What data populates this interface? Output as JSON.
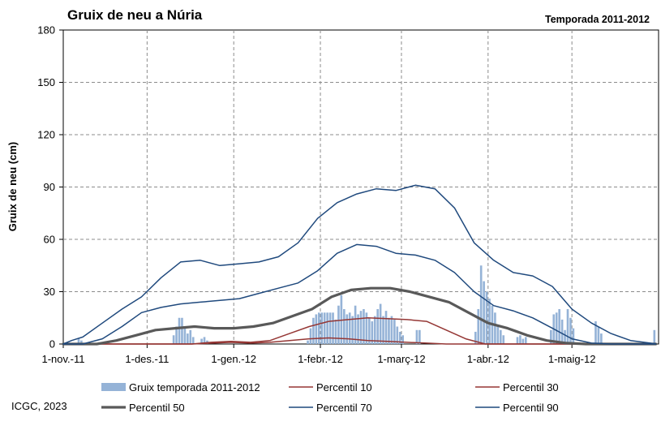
{
  "chart_data": {
    "type": "line",
    "title": "Gruix de neu a Núria",
    "subtitle": "Temporada 2011-2012",
    "xlabel": "",
    "ylabel": "Gruix de neu (cm)",
    "ylim": [
      0,
      180
    ],
    "yticks": [
      0,
      30,
      60,
      90,
      120,
      150,
      180
    ],
    "xlim": [
      "2011-11-01",
      "2012-05-31"
    ],
    "xticks": [
      {
        "date": "2011-11-01",
        "label": "1-nov.-11"
      },
      {
        "date": "2011-12-01",
        "label": "1-des.-11"
      },
      {
        "date": "2012-01-01",
        "label": "1-gen.-12"
      },
      {
        "date": "2012-02-01",
        "label": "1-febr.-12"
      },
      {
        "date": "2012-03-01",
        "label": "1-març-12"
      },
      {
        "date": "2012-04-01",
        "label": "1-abr.-12"
      },
      {
        "date": "2012-05-01",
        "label": "1-maig-12"
      }
    ],
    "grid": "dashed",
    "legend_position": "bottom",
    "credit": "ICGC, 2023",
    "bars": {
      "name": "Gruix temporada 2011-2012",
      "color": "#95b3d7",
      "points": [
        [
          "2011-11-06",
          3
        ],
        [
          "2011-11-07",
          2
        ],
        [
          "2011-12-10",
          5
        ],
        [
          "2011-12-11",
          10
        ],
        [
          "2011-12-12",
          15
        ],
        [
          "2011-12-13",
          15
        ],
        [
          "2011-12-14",
          10
        ],
        [
          "2011-12-15",
          6
        ],
        [
          "2011-12-16",
          8
        ],
        [
          "2011-12-17",
          4
        ],
        [
          "2011-12-20",
          3
        ],
        [
          "2011-12-21",
          4
        ],
        [
          "2011-12-22",
          2
        ],
        [
          "2012-01-27",
          2
        ],
        [
          "2012-01-28",
          9
        ],
        [
          "2012-01-29",
          15
        ],
        [
          "2012-01-30",
          17
        ],
        [
          "2012-01-31",
          18
        ],
        [
          "2012-02-01",
          18
        ],
        [
          "2012-02-02",
          18
        ],
        [
          "2012-02-03",
          18
        ],
        [
          "2012-02-04",
          18
        ],
        [
          "2012-02-05",
          18
        ],
        [
          "2012-02-06",
          14
        ],
        [
          "2012-02-07",
          22
        ],
        [
          "2012-02-08",
          28
        ],
        [
          "2012-02-09",
          20
        ],
        [
          "2012-02-10",
          17
        ],
        [
          "2012-02-11",
          18
        ],
        [
          "2012-02-12",
          16
        ],
        [
          "2012-02-13",
          22
        ],
        [
          "2012-02-14",
          17
        ],
        [
          "2012-02-15",
          19
        ],
        [
          "2012-02-16",
          20
        ],
        [
          "2012-02-17",
          18
        ],
        [
          "2012-02-18",
          15
        ],
        [
          "2012-02-19",
          13
        ],
        [
          "2012-02-20",
          16
        ],
        [
          "2012-02-21",
          20
        ],
        [
          "2012-02-22",
          23
        ],
        [
          "2012-02-23",
          16
        ],
        [
          "2012-02-24",
          19
        ],
        [
          "2012-02-25",
          15
        ],
        [
          "2012-02-26",
          16
        ],
        [
          "2012-02-27",
          14
        ],
        [
          "2012-02-28",
          10
        ],
        [
          "2012-02-29",
          7
        ],
        [
          "2012-03-01",
          5
        ],
        [
          "2012-03-06",
          8
        ],
        [
          "2012-03-07",
          8
        ],
        [
          "2012-03-27",
          7
        ],
        [
          "2012-03-28",
          20
        ],
        [
          "2012-03-29",
          45
        ],
        [
          "2012-03-30",
          36
        ],
        [
          "2012-03-31",
          30
        ],
        [
          "2012-04-01",
          26
        ],
        [
          "2012-04-02",
          22
        ],
        [
          "2012-04-03",
          18
        ],
        [
          "2012-04-04",
          11
        ],
        [
          "2012-04-05",
          8
        ],
        [
          "2012-04-06",
          5
        ],
        [
          "2012-04-11",
          4
        ],
        [
          "2012-04-12",
          5
        ],
        [
          "2012-04-13",
          3
        ],
        [
          "2012-04-14",
          4
        ],
        [
          "2012-04-23",
          8
        ],
        [
          "2012-04-24",
          17
        ],
        [
          "2012-04-25",
          18
        ],
        [
          "2012-04-26",
          20
        ],
        [
          "2012-04-27",
          14
        ],
        [
          "2012-04-28",
          8
        ],
        [
          "2012-04-29",
          20
        ],
        [
          "2012-04-30",
          15
        ],
        [
          "2012-05-01",
          9
        ],
        [
          "2012-05-09",
          13
        ],
        [
          "2012-05-10",
          10
        ],
        [
          "2012-05-11",
          6
        ],
        [
          "2012-05-30",
          8
        ]
      ]
    },
    "series": [
      {
        "name": "Percentil 10",
        "color": "#953735",
        "width": 1.5,
        "points": [
          [
            "2011-11-01",
            0
          ],
          [
            "2011-12-17",
            0
          ],
          [
            "2011-12-31",
            1
          ],
          [
            "2012-01-07",
            0.5
          ],
          [
            "2012-01-14",
            1
          ],
          [
            "2012-01-21",
            2
          ],
          [
            "2012-01-28",
            3
          ],
          [
            "2012-02-04",
            3.5
          ],
          [
            "2012-02-11",
            3
          ],
          [
            "2012-02-18",
            2
          ],
          [
            "2012-02-25",
            1.5
          ],
          [
            "2012-03-03",
            1
          ],
          [
            "2012-03-10",
            0.5
          ],
          [
            "2012-03-17",
            0
          ],
          [
            "2012-05-31",
            0
          ]
        ]
      },
      {
        "name": "Percentil 30",
        "color": "#953735",
        "width": 1.5,
        "points": [
          [
            "2011-11-01",
            0
          ],
          [
            "2011-12-17",
            0
          ],
          [
            "2011-12-24",
            1
          ],
          [
            "2011-12-31",
            1.5
          ],
          [
            "2012-01-07",
            1
          ],
          [
            "2012-01-14",
            2
          ],
          [
            "2012-01-21",
            6
          ],
          [
            "2012-01-28",
            10
          ],
          [
            "2012-02-04",
            13
          ],
          [
            "2012-02-11",
            14
          ],
          [
            "2012-02-18",
            15
          ],
          [
            "2012-02-25",
            14.5
          ],
          [
            "2012-03-03",
            14
          ],
          [
            "2012-03-10",
            13
          ],
          [
            "2012-03-17",
            8
          ],
          [
            "2012-03-24",
            3
          ],
          [
            "2012-03-31",
            0
          ],
          [
            "2012-05-31",
            0
          ]
        ]
      },
      {
        "name": "Percentil 50",
        "color": "#595959",
        "width": 3.2,
        "points": [
          [
            "2011-11-01",
            0
          ],
          [
            "2011-11-13",
            0
          ],
          [
            "2011-11-20",
            2
          ],
          [
            "2011-11-27",
            5
          ],
          [
            "2011-12-04",
            8
          ],
          [
            "2011-12-11",
            9
          ],
          [
            "2011-12-18",
            10
          ],
          [
            "2011-12-25",
            9
          ],
          [
            "2012-01-01",
            9
          ],
          [
            "2012-01-08",
            10
          ],
          [
            "2012-01-15",
            12
          ],
          [
            "2012-01-22",
            16
          ],
          [
            "2012-01-29",
            20
          ],
          [
            "2012-02-05",
            27
          ],
          [
            "2012-02-12",
            31
          ],
          [
            "2012-02-19",
            32
          ],
          [
            "2012-02-26",
            32
          ],
          [
            "2012-03-04",
            30
          ],
          [
            "2012-03-11",
            27
          ],
          [
            "2012-03-18",
            24
          ],
          [
            "2012-03-25",
            18
          ],
          [
            "2012-04-01",
            12
          ],
          [
            "2012-04-08",
            9
          ],
          [
            "2012-04-15",
            5
          ],
          [
            "2012-04-22",
            2
          ],
          [
            "2012-04-29",
            0.5
          ],
          [
            "2012-05-06",
            0
          ],
          [
            "2012-05-31",
            0
          ]
        ]
      },
      {
        "name": "Percentil 70",
        "color": "#1f497d",
        "width": 1.5,
        "points": [
          [
            "2011-11-01",
            0
          ],
          [
            "2011-11-08",
            0
          ],
          [
            "2011-11-15",
            3
          ],
          [
            "2011-11-22",
            10
          ],
          [
            "2011-11-29",
            18
          ],
          [
            "2011-12-06",
            21
          ],
          [
            "2011-12-13",
            23
          ],
          [
            "2011-12-20",
            24
          ],
          [
            "2011-12-27",
            25
          ],
          [
            "2012-01-03",
            26
          ],
          [
            "2012-01-10",
            29
          ],
          [
            "2012-01-17",
            32
          ],
          [
            "2012-01-24",
            35
          ],
          [
            "2012-01-31",
            42
          ],
          [
            "2012-02-07",
            52
          ],
          [
            "2012-02-14",
            57
          ],
          [
            "2012-02-21",
            56
          ],
          [
            "2012-02-28",
            52
          ],
          [
            "2012-03-06",
            51
          ],
          [
            "2012-03-13",
            48
          ],
          [
            "2012-03-20",
            41
          ],
          [
            "2012-03-27",
            30
          ],
          [
            "2012-04-03",
            22
          ],
          [
            "2012-04-10",
            19
          ],
          [
            "2012-04-17",
            15
          ],
          [
            "2012-04-24",
            9
          ],
          [
            "2012-05-01",
            3
          ],
          [
            "2012-05-08",
            0.5
          ],
          [
            "2012-05-15",
            0
          ],
          [
            "2012-05-31",
            0
          ]
        ]
      },
      {
        "name": "Percentil 90",
        "color": "#1f497d",
        "width": 1.5,
        "points": [
          [
            "2011-11-01",
            0
          ],
          [
            "2011-11-04",
            2
          ],
          [
            "2011-11-08",
            4
          ],
          [
            "2011-11-15",
            12
          ],
          [
            "2011-11-22",
            20
          ],
          [
            "2011-11-29",
            27
          ],
          [
            "2011-12-06",
            38
          ],
          [
            "2011-12-13",
            47
          ],
          [
            "2011-12-20",
            48
          ],
          [
            "2011-12-27",
            45
          ],
          [
            "2012-01-03",
            46
          ],
          [
            "2012-01-10",
            47
          ],
          [
            "2012-01-17",
            50
          ],
          [
            "2012-01-24",
            58
          ],
          [
            "2012-01-31",
            72
          ],
          [
            "2012-02-07",
            81
          ],
          [
            "2012-02-14",
            86
          ],
          [
            "2012-02-21",
            89
          ],
          [
            "2012-02-28",
            88
          ],
          [
            "2012-03-06",
            91
          ],
          [
            "2012-03-13",
            89
          ],
          [
            "2012-03-20",
            78
          ],
          [
            "2012-03-27",
            58
          ],
          [
            "2012-04-03",
            48
          ],
          [
            "2012-04-10",
            41
          ],
          [
            "2012-04-17",
            39
          ],
          [
            "2012-04-24",
            33
          ],
          [
            "2012-05-01",
            20
          ],
          [
            "2012-05-08",
            12
          ],
          [
            "2012-05-15",
            6
          ],
          [
            "2012-05-22",
            2
          ],
          [
            "2012-05-29",
            0.5
          ],
          [
            "2012-05-31",
            0
          ]
        ]
      }
    ]
  }
}
